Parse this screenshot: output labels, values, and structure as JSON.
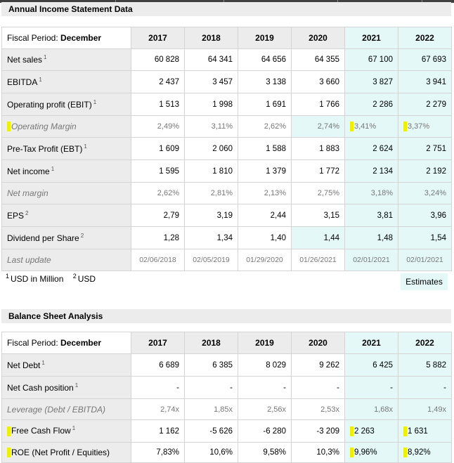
{
  "income": {
    "title": "Annual Income Statement Data",
    "period_label": "Fiscal Period: ",
    "period_value": "December",
    "years": [
      "2017",
      "2018",
      "2019",
      "2020",
      "2021",
      "2022"
    ],
    "rows": [
      {
        "label": "Net sales",
        "sup": "1",
        "values": [
          "60 828",
          "64 341",
          "64 656",
          "64 355",
          "67 100",
          "67 693"
        ]
      },
      {
        "label": "EBITDA",
        "sup": "1",
        "values": [
          "2 437",
          "3 457",
          "3 138",
          "3 660",
          "3 827",
          "3 941"
        ]
      },
      {
        "label": "Operating profit (EBIT)",
        "sup": "1",
        "values": [
          "1 513",
          "1 998",
          "1 691",
          "1 766",
          "2 286",
          "2 279"
        ]
      },
      {
        "label": "Operating Margin",
        "sup": "",
        "values": [
          "2,49%",
          "3,11%",
          "2,62%",
          "2,74%",
          "3,41%",
          "3,37%"
        ]
      },
      {
        "label": "Pre-Tax Profit (EBT)",
        "sup": "1",
        "values": [
          "1 609",
          "2 060",
          "1 588",
          "1 883",
          "2 624",
          "2 751"
        ]
      },
      {
        "label": "Net income",
        "sup": "1",
        "values": [
          "1 595",
          "1 810",
          "1 379",
          "1 772",
          "2 134",
          "2 192"
        ]
      },
      {
        "label": "Net margin",
        "sup": "",
        "values": [
          "2,62%",
          "2,81%",
          "2,13%",
          "2,75%",
          "3,18%",
          "3,24%"
        ]
      },
      {
        "label": "EPS",
        "sup": "2",
        "values": [
          "2,79",
          "3,19",
          "2,44",
          "3,15",
          "3,81",
          "3,96"
        ]
      },
      {
        "label": "Dividend per Share",
        "sup": "2",
        "values": [
          "1,28",
          "1,34",
          "1,40",
          "1,44",
          "1,48",
          "1,54"
        ]
      },
      {
        "label": "Last update",
        "sup": "",
        "values": [
          "02/06/2018",
          "02/05/2019",
          "01/29/2020",
          "01/26/2021",
          "02/01/2021",
          "02/01/2021"
        ]
      }
    ]
  },
  "footnote": {
    "n1": "1",
    "text1": "USD in Million",
    "n2": "2",
    "text2": "USD"
  },
  "estimates_label": "Estimates",
  "balance": {
    "title": "Balance Sheet Analysis",
    "period_label": "Fiscal Period: ",
    "period_value": "December",
    "years": [
      "2017",
      "2018",
      "2019",
      "2020",
      "2021",
      "2022"
    ],
    "rows": [
      {
        "label": "Net Debt",
        "sup": "1",
        "values": [
          "6 689",
          "6 385",
          "8 029",
          "9 262",
          "6 425",
          "5 882"
        ]
      },
      {
        "label": "Net Cash position",
        "sup": "1",
        "values": [
          "-",
          "-",
          "-",
          "-",
          "-",
          "-"
        ]
      },
      {
        "label": "Leverage (Debt / EBITDA)",
        "sup": "",
        "values": [
          "2,74x",
          "1,85x",
          "2,56x",
          "2,53x",
          "1,68x",
          "1,49x"
        ]
      },
      {
        "label": "Free Cash Flow",
        "sup": "1",
        "values": [
          "1 162",
          "-5 626",
          "-6 280",
          "-3 209",
          "2 263",
          "1 631"
        ]
      },
      {
        "label": "ROE (Net Profit / Equities)",
        "sup": "",
        "values": [
          "7,83%",
          "10,6%",
          "9,58%",
          "10,3%",
          "9,96%",
          "8,92%"
        ]
      }
    ]
  },
  "colors": {
    "header_gray": "#ececec",
    "estimate_cyan": "#e4f8f8",
    "highlight_yellow": "#eef000",
    "border": "#d4d4d4"
  }
}
